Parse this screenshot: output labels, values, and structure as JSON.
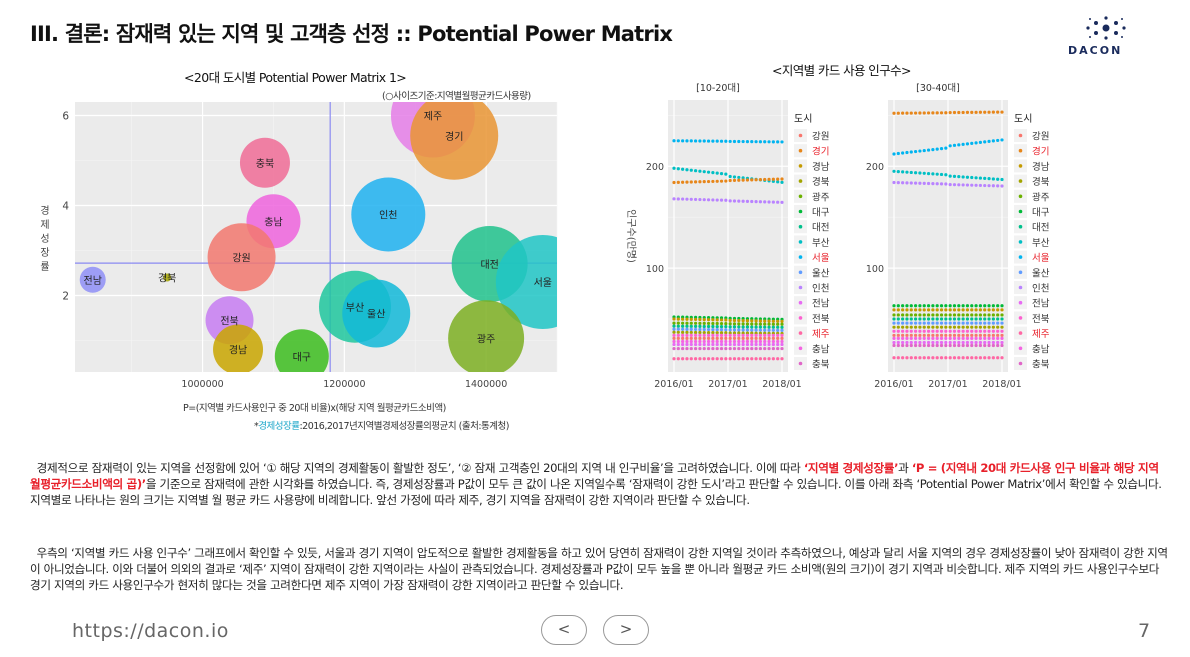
{
  "slide": {
    "title": "III. 결론: 잠재력 있는 지역 및 고객층 선정 :: Potential Power Matrix",
    "logo_text": "DACON"
  },
  "matrix": {
    "title": "<20대 도시별 Potential Power Matrix 1>",
    "size_note": "(○사이즈기준:지역별월평균카드사용량)",
    "ylabel": "경제성장률",
    "xlabel": "P=(지역별 카드사용인구 중 20대 비율)x(해당 지역 월평균카드소비액)",
    "footnote_prefix": "*",
    "footnote_highlight": "경제성장률",
    "footnote_rest": ":2016,2017년지역별경제성장률의평균치 (출처:통계청)"
  },
  "cards": {
    "title": "<지역별 카드 사용 인구수>",
    "ylabel": "인구수(만명)",
    "legend_title": "도시",
    "panels": [
      {
        "label": "[10-20대]"
      },
      {
        "label": "[30-40대]"
      }
    ]
  },
  "text": {
    "p1_a": "경제적으로 잠재력이 있는 지역을 선정함에 있어 ‘① 해당 지역의 경제활동이 활발한 정도’, ‘② 잠재 고객층인 20대의 지역 내 인구비율’을 고려하였습니다. 이에 따라 ",
    "p1_b": "‘지역별 경제성장률’",
    "p1_c": "과 ",
    "p1_d": "‘P = (지역내 20대 카드사용 인구 비율과 해당 지역 월평균카드소비액의 곱)’",
    "p1_e": "을 기준으로 잠재력에 관한 시각화를 하였습니다. 즉, 경제성장률과 P값이 모두 큰 값이 나온 지역일수록 ‘잠재력이 강한 도시’라고 판단할 수 있습니다. 이를 아래 좌측 ‘Potential Power Matrix’에서 확인할 수 있습니다. 지역별로 나타나는 원의 크기는 지역별 월 평균 카드 사용량에 비례합니다. 앞선 가정에 따라 제주, 경기 지역을 잠재력이 강한 지역이라 판단할 수 있습니다.",
    "p2": "우측의 ‘지역별 카드 사용 인구수’ 그래프에서 확인할 수 있듯, 서울과 경기 지역이 압도적으로 활발한 경제활동을 하고 있어 당연히 잠재력이 강한 지역일 것이라 추측하였으나, 예상과 달리 서울 지역의 경우 경제성장률이 낮아 잠재력이 강한 지역이 아니었습니다. 이와 더불어 의외의 결과로 ‘제주’ 지역이 잠재력이 강한 지역이라는 사실이 관측되었습니다. 경제성장률과 P값이 모두 높을 뿐 아니라 월평균 카드 소비액(원의 크기)이 경기 지역과 비슷합니다. 제주 지역의 카드 사용인구수보다 경기 지역의 카드 사용인구수가 현저히 많다는 것을 고려한다면 제주 지역이 가장 잠재력이 강한 지역이라고 판단할 수 있습니다."
  },
  "footer": {
    "url": "https://dacon.io",
    "prev": "<",
    "next": ">",
    "page": "7"
  },
  "chart_data": [
    {
      "type": "scatter",
      "title": "<20대 도시별 Potential Power Matrix 1>",
      "xlabel": "P=(지역별 카드사용인구 중 20대 비율)x(해당 지역 월평균카드소비액)",
      "ylabel": "경제성장률",
      "xlim": [
        820000,
        1500000
      ],
      "ylim": [
        0.3,
        6.3
      ],
      "xticks": [
        1000000,
        1200000,
        1400000
      ],
      "yticks": [
        2,
        4,
        6
      ],
      "grid": true,
      "ref_lines": {
        "x": 1180000,
        "y": 2.72
      },
      "points": [
        {
          "name": "제주",
          "x": 1325000,
          "y": 6.0,
          "size": 42,
          "color": "#e57ee8"
        },
        {
          "name": "경기",
          "x": 1355000,
          "y": 5.55,
          "size": 44,
          "color": "#e99534"
        },
        {
          "name": "충북",
          "x": 1088000,
          "y": 4.95,
          "size": 25,
          "color": "#f06c96"
        },
        {
          "name": "인천",
          "x": 1262000,
          "y": 3.8,
          "size": 37,
          "color": "#1fb2f0"
        },
        {
          "name": "충남",
          "x": 1100000,
          "y": 3.65,
          "size": 27,
          "color": "#ef64dd"
        },
        {
          "name": "강원",
          "x": 1055000,
          "y": 2.85,
          "size": 34,
          "color": "#f2786e"
        },
        {
          "name": "대전",
          "x": 1405000,
          "y": 2.7,
          "size": 38,
          "color": "#20c28c"
        },
        {
          "name": "서울",
          "x": 1480000,
          "y": 2.3,
          "size": 47,
          "color": "#20c6c6"
        },
        {
          "name": "전남",
          "x": 845000,
          "y": 2.35,
          "size": 13,
          "color": "#8f8ff7"
        },
        {
          "name": "경북",
          "x": 950000,
          "y": 2.4,
          "size": 4,
          "color": "#a3a300"
        },
        {
          "name": "부산",
          "x": 1215000,
          "y": 1.75,
          "size": 36,
          "color": "#1fc79e"
        },
        {
          "name": "울산",
          "x": 1245000,
          "y": 1.6,
          "size": 34,
          "color": "#12b8d8"
        },
        {
          "name": "전북",
          "x": 1038000,
          "y": 1.45,
          "size": 24,
          "color": "#c77cf2"
        },
        {
          "name": "광주",
          "x": 1400000,
          "y": 1.05,
          "size": 38,
          "color": "#7caf22"
        },
        {
          "name": "경남",
          "x": 1050000,
          "y": 0.8,
          "size": 25,
          "color": "#c9a600"
        },
        {
          "name": "대구",
          "x": 1140000,
          "y": 0.65,
          "size": 27,
          "color": "#3cbd1f"
        }
      ]
    },
    {
      "type": "scatter",
      "title": "<지역별 카드 사용 인구수>",
      "ylabel": "인구수(만명)",
      "x_ticks": [
        "2016/01",
        "2017/01",
        "2018/01"
      ],
      "ylim": [
        -2,
        265
      ],
      "yticks": [
        100,
        200
      ],
      "legend_title": "도시",
      "legend_position": "right",
      "grid": true,
      "categories": [
        "강원",
        "경기",
        "경남",
        "경북",
        "광주",
        "대구",
        "대전",
        "부산",
        "서울",
        "울산",
        "인천",
        "전남",
        "전북",
        "제주",
        "충남",
        "충북"
      ],
      "colors": [
        "#f8766d",
        "#e7861a",
        "#c49a00",
        "#a3a500",
        "#6bb100",
        "#00ba38",
        "#00c08b",
        "#00bfc4",
        "#00b4f0",
        "#619cff",
        "#b983ff",
        "#e76bf3",
        "#fd61d1",
        "#ff67a4",
        "#f564e3",
        "#e066c8"
      ],
      "legend_highlight": [
        "경기",
        "서울",
        "제주"
      ],
      "panels": [
        {
          "label": "[10-20대]",
          "series": [
            {
              "name": "서울",
              "start": 225,
              "end": 224
            },
            {
              "name": "부산",
              "start": 198,
              "end": 186
            },
            {
              "name": "경기",
              "start": 184,
              "end": 187
            },
            {
              "name": "인천",
              "start": 168,
              "end": 165
            },
            {
              "name": "대구",
              "start": 52,
              "end": 50
            },
            {
              "name": "경남",
              "start": 50,
              "end": 48
            },
            {
              "name": "광주",
              "start": 46,
              "end": 45
            },
            {
              "name": "대전",
              "start": 43,
              "end": 42
            },
            {
              "name": "울산",
              "start": 40,
              "end": 39
            },
            {
              "name": "경북",
              "start": 37,
              "end": 36
            },
            {
              "name": "전북",
              "start": 34,
              "end": 34
            },
            {
              "name": "강원",
              "start": 31,
              "end": 31
            },
            {
              "name": "충남",
              "start": 28,
              "end": 28
            },
            {
              "name": "전남",
              "start": 25,
              "end": 25
            },
            {
              "name": "충북",
              "start": 21,
              "end": 21
            },
            {
              "name": "제주",
              "start": 11,
              "end": 11
            }
          ]
        },
        {
          "label": "[30-40대]",
          "series": [
            {
              "name": "경기",
              "start": 252,
              "end": 253
            },
            {
              "name": "서울",
              "start": 212,
              "end": 224
            },
            {
              "name": "부산",
              "start": 195,
              "end": 188
            },
            {
              "name": "인천",
              "start": 184,
              "end": 181
            },
            {
              "name": "대구",
              "start": 63,
              "end": 63
            },
            {
              "name": "경남",
              "start": 59,
              "end": 59
            },
            {
              "name": "광주",
              "start": 54,
              "end": 54
            },
            {
              "name": "대전",
              "start": 50,
              "end": 50
            },
            {
              "name": "울산",
              "start": 46,
              "end": 46
            },
            {
              "name": "경북",
              "start": 42,
              "end": 42
            },
            {
              "name": "전북",
              "start": 38,
              "end": 38
            },
            {
              "name": "강원",
              "start": 34,
              "end": 34
            },
            {
              "name": "충남",
              "start": 31,
              "end": 31
            },
            {
              "name": "전남",
              "start": 27,
              "end": 27
            },
            {
              "name": "충북",
              "start": 24,
              "end": 24
            },
            {
              "name": "제주",
              "start": 12,
              "end": 12
            }
          ]
        }
      ]
    }
  ]
}
